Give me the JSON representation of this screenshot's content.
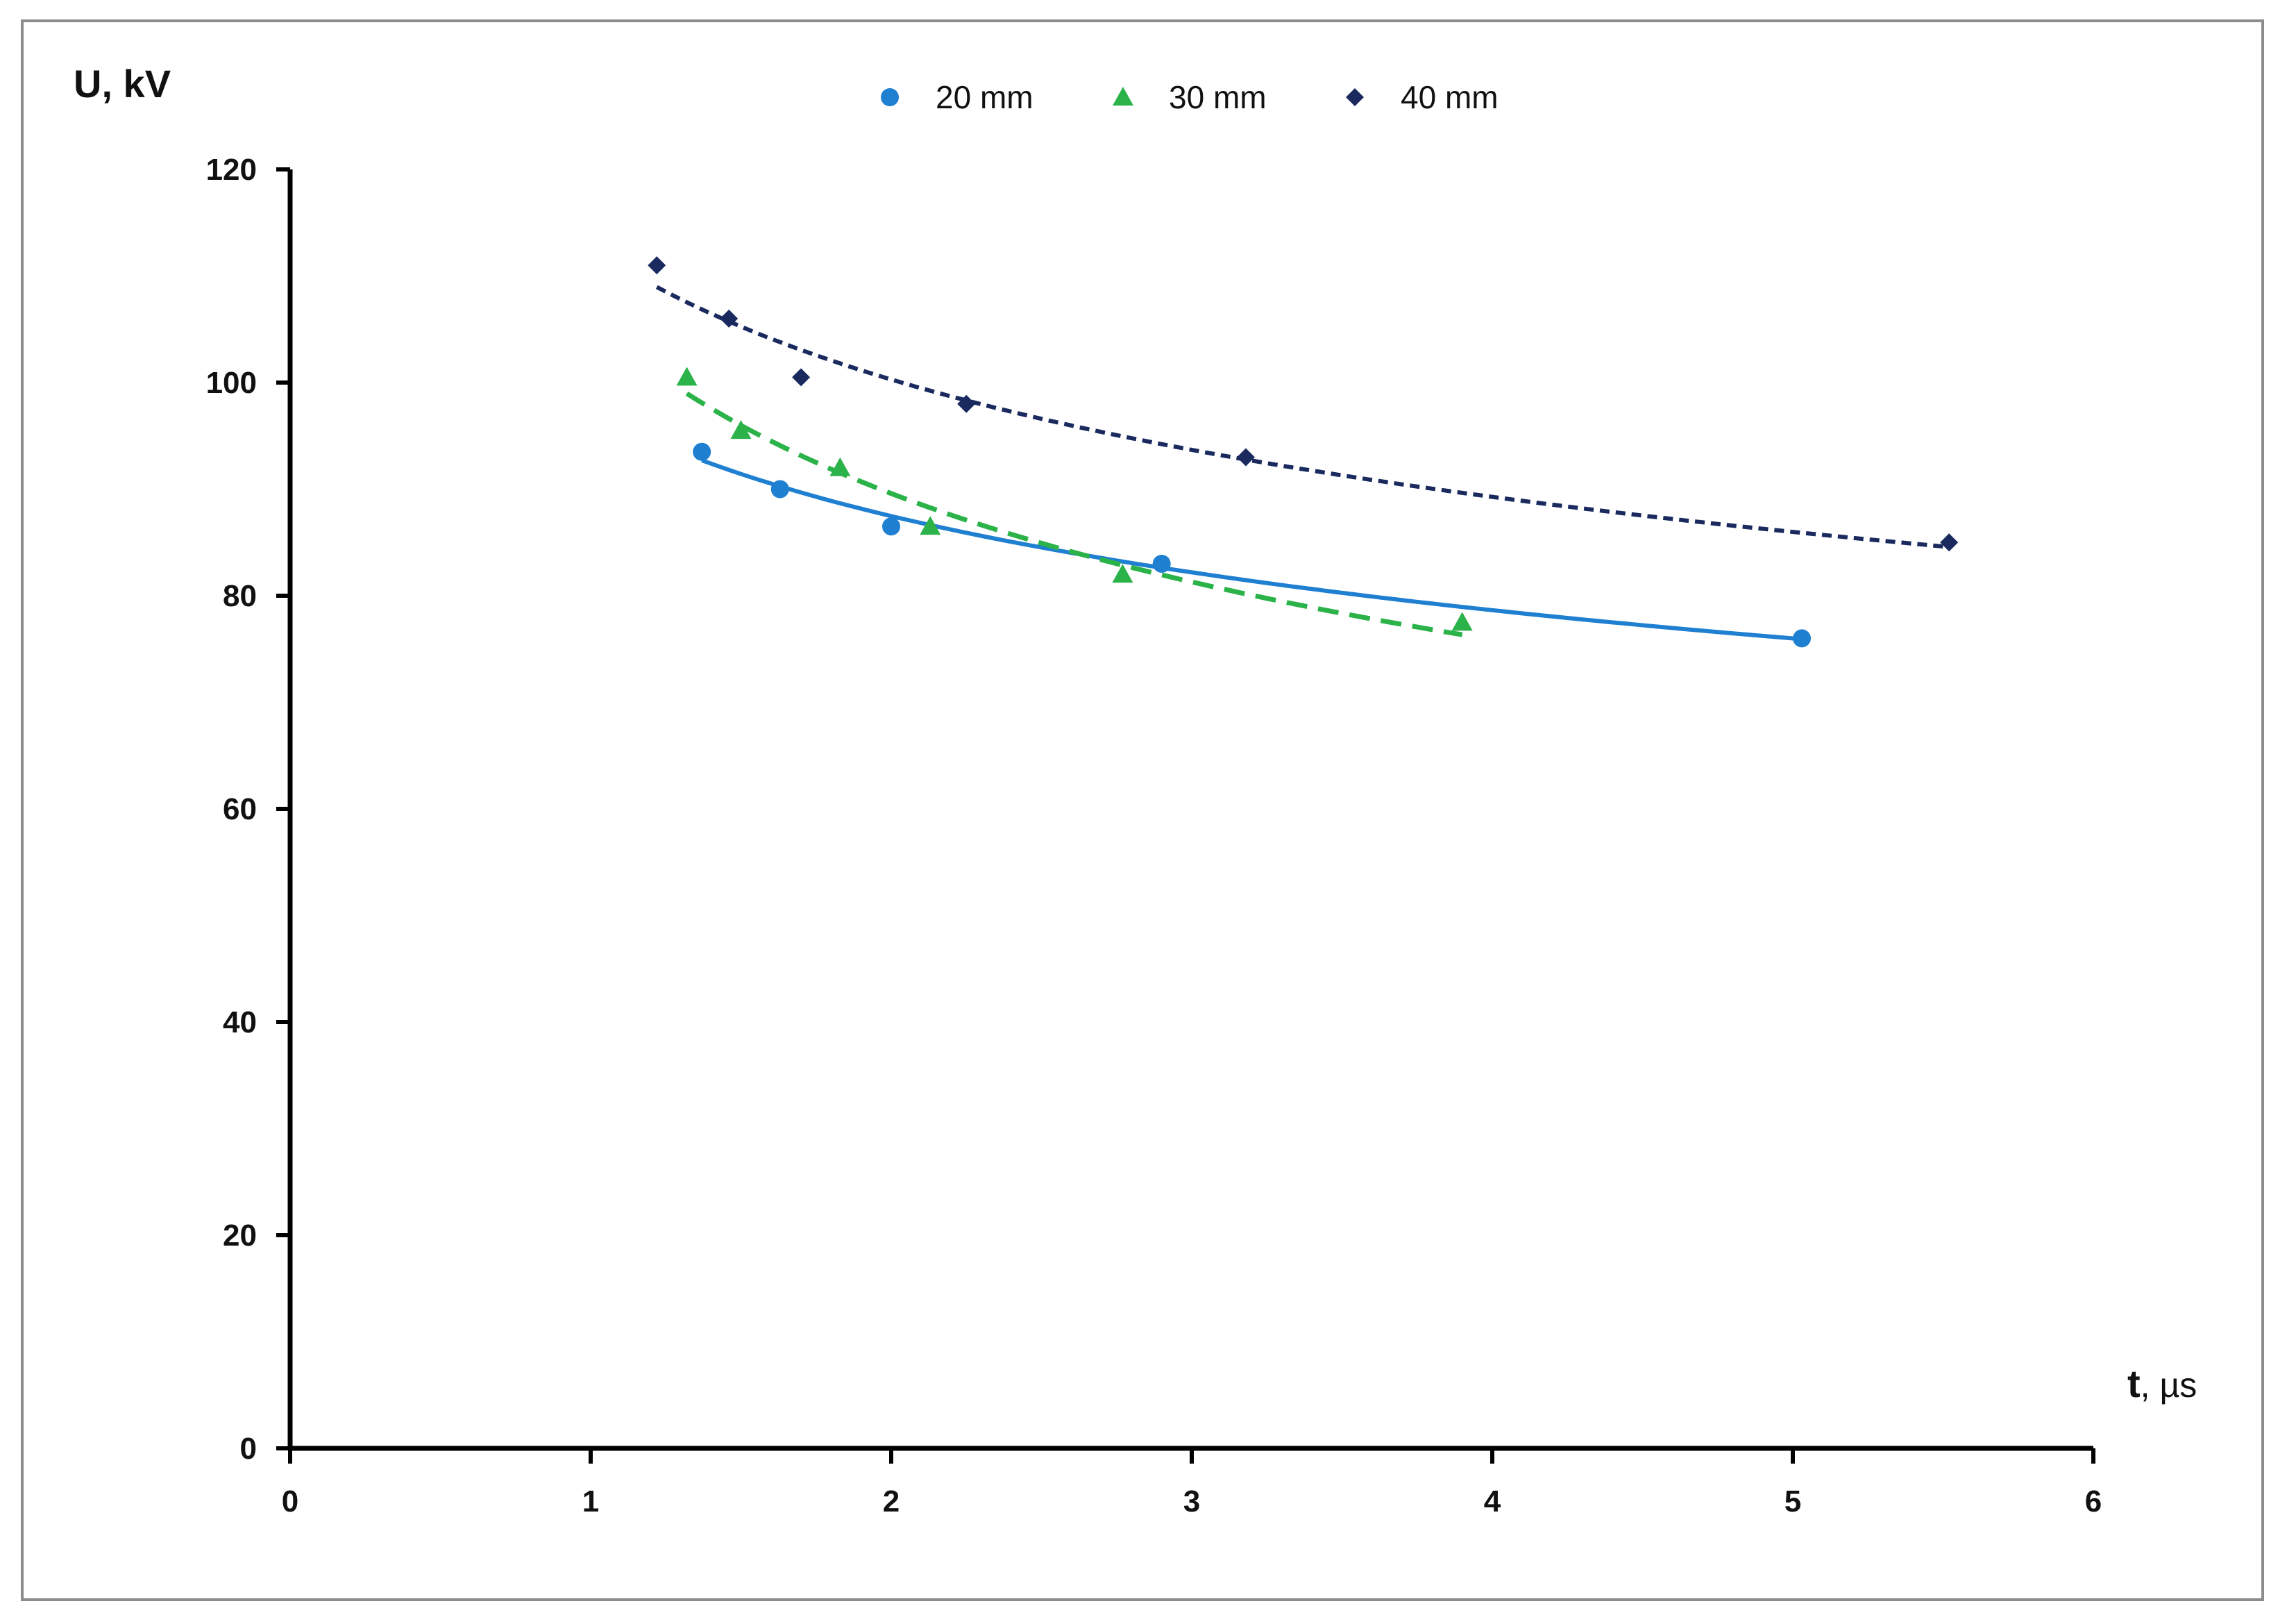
{
  "chart_data": {
    "type": "scatter",
    "title": "",
    "ylabel": "U, kV",
    "xlabel_main": "t",
    "xlabel_unit": ", µs",
    "xlim": [
      0,
      6
    ],
    "ylim": [
      0,
      120
    ],
    "x_ticks": [
      0,
      1,
      2,
      3,
      4,
      5,
      6
    ],
    "y_ticks": [
      0,
      20,
      40,
      60,
      80,
      100,
      120
    ],
    "x_tick_labels": [
      "0",
      "1",
      "2",
      "3",
      "4",
      "5",
      "6"
    ],
    "y_tick_labels": [
      "0",
      "20",
      "40",
      "60",
      "80",
      "100",
      "120"
    ],
    "grid": false,
    "legend_position": "top-center",
    "series": [
      {
        "name": "20 mm",
        "marker": "circle",
        "color": "#1f7fd1",
        "trend_style": "solid",
        "x": [
          1.37,
          1.63,
          2.0,
          2.9,
          5.03
        ],
        "y": [
          93.5,
          90.0,
          86.5,
          83.0,
          76.0
        ]
      },
      {
        "name": "30 mm",
        "marker": "triangle",
        "color": "#2bb34a",
        "trend_style": "dashed",
        "x": [
          1.32,
          1.5,
          1.83,
          2.13,
          2.77,
          3.9
        ],
        "y": [
          100.5,
          95.5,
          92.0,
          86.5,
          82.0,
          77.5
        ]
      },
      {
        "name": "40 mm",
        "marker": "diamond",
        "color": "#1a2a5e",
        "trend_style": "dotted",
        "x": [
          1.22,
          1.46,
          1.7,
          2.25,
          3.18,
          5.52
        ],
        "y": [
          111.0,
          106.0,
          100.5,
          98.0,
          93.0,
          85.0
        ]
      }
    ]
  }
}
